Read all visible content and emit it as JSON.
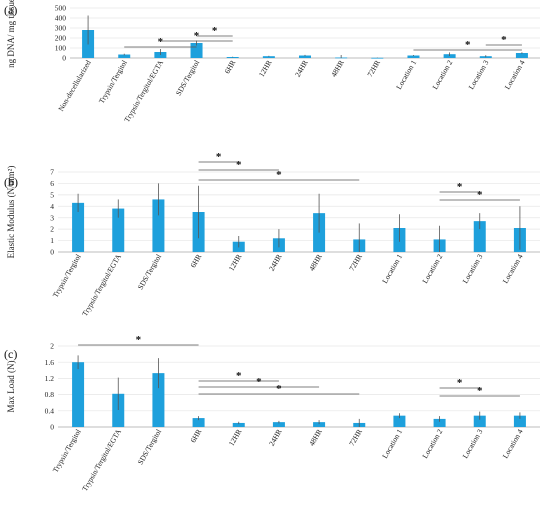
{
  "colors": {
    "bar": "#1ea0dc",
    "axis": "#bdbdbd",
    "grid": "#e6e6e6",
    "error": "#555555",
    "sig": "#555555"
  },
  "chart_data": [
    {
      "type": "bar",
      "panel_label": "(a)",
      "ylabel": "ng DNA/ mg tissue",
      "ylim": [
        0,
        500
      ],
      "yticks": [
        "0",
        "100",
        "200",
        "300",
        "400",
        "500"
      ],
      "categories": [
        "Non-decellularized",
        "Trypsin/Tergitol",
        "Trypsin/Tergitol/EGTA",
        "SDS/Tergitol",
        "6HR",
        "12HR",
        "24HR",
        "48HR",
        "72HR",
        "Location 1",
        "Location 2",
        "Location 3",
        "Location 4"
      ],
      "values": [
        280,
        35,
        60,
        150,
        10,
        18,
        25,
        5,
        2,
        25,
        38,
        18,
        50
      ],
      "errors": [
        145,
        8,
        30,
        25,
        3,
        4,
        6,
        25,
        2,
        5,
        18,
        10,
        8
      ],
      "significance": [
        {
          "from": "Trypsin/Tergitol",
          "to": "SDS/Tergitol",
          "label": "*"
        },
        {
          "from": "Trypsin/Tergitol/EGTA",
          "to": "6HR",
          "label": "*"
        },
        {
          "from": "SDS/Tergitol",
          "to": "6HR",
          "label": "*"
        },
        {
          "from": "Location 1",
          "to": "Location 4",
          "label": "*"
        },
        {
          "from": "Location 3",
          "to": "Location 4",
          "label": "*"
        }
      ]
    },
    {
      "type": "bar",
      "panel_label": "(b)",
      "ylabel": "Elastic Modulus (N/mm²)",
      "ylim": [
        0,
        7
      ],
      "yticks": [
        "0",
        "1",
        "2",
        "3",
        "4",
        "5",
        "6",
        "7"
      ],
      "categories": [
        "Trypsin/Tergitol",
        "Trypsin/Tergitol/EGTA",
        "SDS/Tergitol",
        "6HR",
        "12HR",
        "24HR",
        "48HR",
        "72HR",
        "Location 1",
        "Location 2",
        "Location 3",
        "Location 4"
      ],
      "values": [
        4.3,
        3.8,
        4.6,
        3.5,
        0.9,
        1.2,
        3.4,
        1.1,
        2.1,
        1.1,
        2.7,
        2.1
      ],
      "errors": [
        0.8,
        0.8,
        1.4,
        2.3,
        0.5,
        0.8,
        1.7,
        1.4,
        1.2,
        1.2,
        0.7,
        1.9
      ],
      "significance": [
        {
          "from": "6HR",
          "to": "12HR",
          "label": "*"
        },
        {
          "from": "6HR",
          "to": "24HR",
          "label": "*"
        },
        {
          "from": "6HR",
          "to": "72HR",
          "label": "*"
        },
        {
          "from": "Location 2",
          "to": "Location 3",
          "label": "*"
        },
        {
          "from": "Location 2",
          "to": "Location 4",
          "label": "*"
        }
      ]
    },
    {
      "type": "bar",
      "panel_label": "(c)",
      "ylabel": "Max Load (N)",
      "ylim": [
        0,
        2
      ],
      "yticks": [
        "0",
        "0.4",
        "0.8",
        "1.2",
        "1.6",
        "2"
      ],
      "categories": [
        "Trypsin/Tergitol",
        "Trypsin/Tergitol/EGTA",
        "SDS/Tergitol",
        "6HR",
        "12HR",
        "24HR",
        "48HR",
        "72HR",
        "Location 1",
        "Location 2",
        "Location 3",
        "Location 4"
      ],
      "values": [
        1.6,
        0.82,
        1.33,
        0.22,
        0.1,
        0.12,
        0.12,
        0.1,
        0.28,
        0.2,
        0.28,
        0.28
      ],
      "errors": [
        0.17,
        0.4,
        0.37,
        0.05,
        0.03,
        0.03,
        0.05,
        0.1,
        0.06,
        0.07,
        0.1,
        0.08
      ],
      "significance": [
        {
          "from": "Trypsin/Tergitol",
          "to": "6HR",
          "label": "*"
        },
        {
          "from": "6HR",
          "to": "24HR",
          "label": "*"
        },
        {
          "from": "6HR",
          "to": "48HR",
          "label": "*"
        },
        {
          "from": "6HR",
          "to": "72HR",
          "label": "*"
        },
        {
          "from": "Location 2",
          "to": "Location 3",
          "label": "*"
        },
        {
          "from": "Location 2",
          "to": "Location 4",
          "label": "*"
        }
      ]
    }
  ]
}
